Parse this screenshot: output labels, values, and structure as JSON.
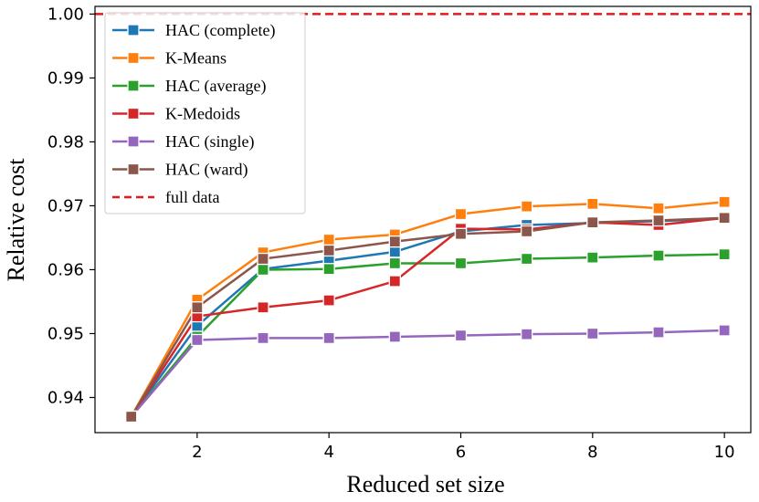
{
  "chart_data": {
    "type": "line",
    "xlabel": "Reduced set size",
    "ylabel": "Relative cost",
    "xlim": [
      0.45,
      10.4
    ],
    "ylim": [
      0.9345,
      1.0012
    ],
    "xticks": [
      2,
      4,
      6,
      8,
      10
    ],
    "xtick_labels": [
      "2",
      "4",
      "6",
      "8",
      "10"
    ],
    "yticks": [
      0.94,
      0.95,
      0.96,
      0.97,
      0.98,
      0.99,
      1.0
    ],
    "ytick_labels": [
      "0.94",
      "0.95",
      "0.96",
      "0.97",
      "0.98",
      "0.99",
      "1.00"
    ],
    "grid": false,
    "legend_position": "top-left",
    "x": [
      1,
      2,
      3,
      4,
      5,
      6,
      7,
      8,
      9,
      10
    ],
    "series": [
      {
        "name": "HAC (complete)",
        "color": "#1f77b4",
        "values": [
          0.937,
          0.9512,
          0.9601,
          0.9614,
          0.9628,
          0.966,
          0.967,
          0.9673,
          0.9676,
          0.968
        ]
      },
      {
        "name": "K-Means",
        "color": "#ff7f0e",
        "values": [
          0.937,
          0.9553,
          0.9627,
          0.9647,
          0.9655,
          0.9687,
          0.9699,
          0.9703,
          0.9696,
          0.9706
        ]
      },
      {
        "name": "HAC (average)",
        "color": "#2ca02c",
        "values": [
          0.937,
          0.9495,
          0.96,
          0.9601,
          0.961,
          0.961,
          0.9617,
          0.9619,
          0.9622,
          0.9624
        ]
      },
      {
        "name": "K-Medoids",
        "color": "#d62728",
        "values": [
          0.937,
          0.9527,
          0.9541,
          0.9552,
          0.9582,
          0.9664,
          0.9663,
          0.9674,
          0.967,
          0.9681
        ]
      },
      {
        "name": "HAC (single)",
        "color": "#9467bd",
        "values": [
          0.937,
          0.949,
          0.9493,
          0.9493,
          0.9495,
          0.9497,
          0.9499,
          0.95,
          0.9502,
          0.9505
        ]
      },
      {
        "name": "HAC (ward)",
        "color": "#8c564b",
        "values": [
          0.937,
          0.9541,
          0.9617,
          0.963,
          0.9644,
          0.9656,
          0.966,
          0.9674,
          0.9677,
          0.9681
        ]
      }
    ],
    "reference_line": {
      "name": "full data",
      "color": "#e41a1c",
      "value": 1.0,
      "style": "dashed"
    }
  }
}
